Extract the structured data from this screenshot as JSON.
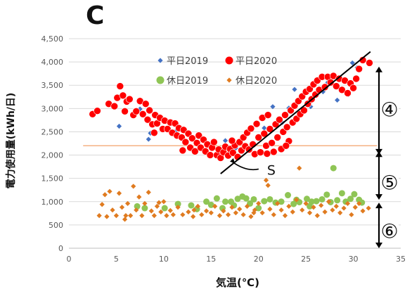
{
  "panel_label": "C",
  "chart_data": {
    "type": "scatter",
    "title": "",
    "xlabel": "気温(℃)",
    "ylabel": "電力使用量(kWh/日)",
    "xlim": [
      0,
      35
    ],
    "ylim": [
      0,
      4500
    ],
    "xticks": [
      "0",
      "5",
      "10",
      "15",
      "20",
      "25",
      "30",
      "35"
    ],
    "yticks": [
      "0",
      "500",
      "1,000",
      "1,500",
      "2,000",
      "2,500",
      "3,000",
      "3,500",
      "4,000",
      "4,500"
    ],
    "grid": "horizontal",
    "legend_position": "top",
    "colors": {
      "weekday2019": "#4472c4",
      "weekday2020": "#ff0000",
      "holiday2019": "#8fc555",
      "holiday2020": "#e07b20",
      "regression_line": "#000000",
      "baseline": "#f4b183",
      "arrow": "#000000"
    },
    "series": [
      {
        "name": "平日2019",
        "marker": "diamond",
        "points": [
          [
            5.3,
            2620
          ],
          [
            7.5,
            2990
          ],
          [
            8.6,
            2470
          ],
          [
            8.4,
            2340
          ],
          [
            11.2,
            2500
          ],
          [
            13.0,
            2110
          ],
          [
            16.5,
            2310
          ],
          [
            17.6,
            2150
          ],
          [
            19.5,
            2210
          ],
          [
            20.6,
            2580
          ],
          [
            21.5,
            3040
          ],
          [
            22.5,
            2700
          ],
          [
            23.8,
            3410
          ],
          [
            24.5,
            2880
          ],
          [
            25.5,
            3040
          ],
          [
            26.8,
            3360
          ],
          [
            27.3,
            3560
          ],
          [
            28.3,
            3180
          ],
          [
            29.5,
            3300
          ],
          [
            29.9,
            3980
          ],
          [
            30.4,
            3880
          ],
          [
            25.9,
            3290
          ],
          [
            26.3,
            3620
          ],
          [
            23.2,
            3010
          ]
        ]
      },
      {
        "name": "平日2020",
        "marker": "circle",
        "points": [
          [
            2.5,
            2880
          ],
          [
            3.0,
            2950
          ],
          [
            4.2,
            3100
          ],
          [
            4.8,
            3050
          ],
          [
            5.1,
            3230
          ],
          [
            5.4,
            3480
          ],
          [
            5.7,
            3280
          ],
          [
            5.9,
            2940
          ],
          [
            6.1,
            3150
          ],
          [
            6.4,
            3200
          ],
          [
            6.8,
            2860
          ],
          [
            7.1,
            2940
          ],
          [
            7.5,
            3160
          ],
          [
            7.8,
            2880
          ],
          [
            8.1,
            3100
          ],
          [
            8.3,
            2760
          ],
          [
            8.5,
            2960
          ],
          [
            8.8,
            2660
          ],
          [
            9.1,
            2860
          ],
          [
            9.3,
            2680
          ],
          [
            9.6,
            2800
          ],
          [
            9.9,
            2560
          ],
          [
            10.1,
            2740
          ],
          [
            10.4,
            2560
          ],
          [
            10.7,
            2700
          ],
          [
            10.9,
            2480
          ],
          [
            11.2,
            2680
          ],
          [
            11.4,
            2420
          ],
          [
            11.6,
            2580
          ],
          [
            11.9,
            2380
          ],
          [
            12.1,
            2540
          ],
          [
            12.3,
            2280
          ],
          [
            12.6,
            2460
          ],
          [
            12.8,
            2160
          ],
          [
            13.0,
            2360
          ],
          [
            13.3,
            2080
          ],
          [
            13.5,
            2260
          ],
          [
            13.7,
            2420
          ],
          [
            13.9,
            2160
          ],
          [
            14.2,
            2330
          ],
          [
            14.4,
            2080
          ],
          [
            14.6,
            2230
          ],
          [
            14.9,
            2000
          ],
          [
            15.1,
            2160
          ],
          [
            15.3,
            2280
          ],
          [
            15.6,
            2000
          ],
          [
            15.8,
            2120
          ],
          [
            16.0,
            1940
          ],
          [
            16.3,
            2060
          ],
          [
            16.5,
            2180
          ],
          [
            16.8,
            1990
          ],
          [
            17.0,
            2130
          ],
          [
            17.3,
            2050
          ],
          [
            17.5,
            2210
          ],
          [
            17.8,
            1960
          ],
          [
            18.0,
            2280
          ],
          [
            18.2,
            2100
          ],
          [
            18.4,
            2380
          ],
          [
            18.6,
            2190
          ],
          [
            18.8,
            2480
          ],
          [
            19.0,
            2120
          ],
          [
            19.2,
            2570
          ],
          [
            19.4,
            2230
          ],
          [
            19.6,
            2020
          ],
          [
            19.8,
            2670
          ],
          [
            20.0,
            2380
          ],
          [
            20.2,
            2060
          ],
          [
            20.4,
            2800
          ],
          [
            20.6,
            2460
          ],
          [
            20.8,
            2200
          ],
          [
            21.0,
            2860
          ],
          [
            21.2,
            2560
          ],
          [
            21.4,
            2260
          ],
          [
            21.6,
            2070
          ],
          [
            21.8,
            2660
          ],
          [
            22.0,
            2380
          ],
          [
            22.2,
            2760
          ],
          [
            22.4,
            2130
          ],
          [
            22.6,
            2500
          ],
          [
            22.8,
            2860
          ],
          [
            23.0,
            2600
          ],
          [
            23.2,
            2300
          ],
          [
            23.4,
            2960
          ],
          [
            23.6,
            2700
          ],
          [
            23.8,
            3060
          ],
          [
            24.0,
            2780
          ],
          [
            24.2,
            3160
          ],
          [
            24.4,
            2880
          ],
          [
            24.6,
            3260
          ],
          [
            24.8,
            2960
          ],
          [
            25.0,
            3360
          ],
          [
            25.2,
            3100
          ],
          [
            25.4,
            3420
          ],
          [
            25.6,
            3200
          ],
          [
            25.8,
            3520
          ],
          [
            26.0,
            3300
          ],
          [
            26.2,
            3600
          ],
          [
            26.4,
            3400
          ],
          [
            26.7,
            3680
          ],
          [
            27.0,
            3460
          ],
          [
            27.3,
            3680
          ],
          [
            27.6,
            3560
          ],
          [
            27.9,
            3700
          ],
          [
            28.2,
            3480
          ],
          [
            28.5,
            3640
          ],
          [
            28.8,
            3400
          ],
          [
            29.1,
            3600
          ],
          [
            29.4,
            3330
          ],
          [
            29.7,
            3540
          ],
          [
            30.0,
            3440
          ],
          [
            30.3,
            3640
          ],
          [
            30.6,
            3850
          ],
          [
            31.0,
            4040
          ],
          [
            31.7,
            3980
          ],
          [
            17.2,
            2310
          ],
          [
            20.9,
            2030
          ],
          [
            22.9,
            2200
          ],
          [
            12.0,
            2100
          ],
          [
            9.0,
            2480
          ]
        ]
      },
      {
        "name": "休日2019",
        "marker": "circle",
        "points": [
          [
            7.2,
            900
          ],
          [
            8.0,
            860
          ],
          [
            11.5,
            950
          ],
          [
            13.5,
            840
          ],
          [
            14.5,
            1000
          ],
          [
            15.0,
            930
          ],
          [
            15.6,
            1070
          ],
          [
            16.2,
            860
          ],
          [
            16.5,
            1000
          ],
          [
            17.1,
            1000
          ],
          [
            17.4,
            920
          ],
          [
            17.8,
            1060
          ],
          [
            18.3,
            1110
          ],
          [
            18.7,
            1070
          ],
          [
            19.1,
            960
          ],
          [
            19.5,
            1050
          ],
          [
            20.0,
            860
          ],
          [
            20.6,
            1010
          ],
          [
            21.2,
            1050
          ],
          [
            21.8,
            980
          ],
          [
            22.4,
            1000
          ],
          [
            23.1,
            1140
          ],
          [
            23.7,
            950
          ],
          [
            24.3,
            990
          ],
          [
            25.1,
            1060
          ],
          [
            25.6,
            1000
          ],
          [
            26.1,
            1010
          ],
          [
            26.7,
            1050
          ],
          [
            27.2,
            1150
          ],
          [
            27.6,
            990
          ],
          [
            27.9,
            1720
          ],
          [
            28.3,
            1030
          ],
          [
            28.8,
            1180
          ],
          [
            29.2,
            1000
          ],
          [
            29.7,
            1060
          ],
          [
            30.1,
            1160
          ],
          [
            30.6,
            1040
          ],
          [
            30.9,
            980
          ],
          [
            25.4,
            900
          ],
          [
            24.0,
            1040
          ],
          [
            12.9,
            920
          ],
          [
            10.1,
            860
          ]
        ]
      },
      {
        "name": "休日2020",
        "marker": "diamond",
        "points": [
          [
            3.2,
            700
          ],
          [
            3.5,
            940
          ],
          [
            3.8,
            1150
          ],
          [
            4.0,
            680
          ],
          [
            4.3,
            1220
          ],
          [
            4.6,
            820
          ],
          [
            5.0,
            700
          ],
          [
            5.3,
            1180
          ],
          [
            5.6,
            880
          ],
          [
            5.9,
            620
          ],
          [
            6.2,
            960
          ],
          [
            6.5,
            700
          ],
          [
            6.8,
            1330
          ],
          [
            7.1,
            820
          ],
          [
            7.4,
            1100
          ],
          [
            7.7,
            700
          ],
          [
            8.0,
            960
          ],
          [
            8.4,
            1200
          ],
          [
            8.7,
            800
          ],
          [
            9.0,
            700
          ],
          [
            9.3,
            900
          ],
          [
            9.7,
            780
          ],
          [
            10.0,
            1000
          ],
          [
            10.3,
            700
          ],
          [
            10.7,
            810
          ],
          [
            11.0,
            720
          ],
          [
            11.5,
            880
          ],
          [
            12.0,
            720
          ],
          [
            12.6,
            780
          ],
          [
            13.1,
            680
          ],
          [
            13.6,
            900
          ],
          [
            14.0,
            720
          ],
          [
            14.5,
            800
          ],
          [
            15.0,
            760
          ],
          [
            15.4,
            900
          ],
          [
            15.9,
            700
          ],
          [
            16.3,
            800
          ],
          [
            16.8,
            720
          ],
          [
            17.2,
            880
          ],
          [
            17.6,
            760
          ],
          [
            18.0,
            840
          ],
          [
            18.4,
            720
          ],
          [
            18.8,
            900
          ],
          [
            19.2,
            680
          ],
          [
            19.6,
            820
          ],
          [
            20.0,
            960
          ],
          [
            20.4,
            760
          ],
          [
            20.8,
            1460
          ],
          [
            21.2,
            840
          ],
          [
            21.6,
            720
          ],
          [
            22.0,
            960
          ],
          [
            22.4,
            820
          ],
          [
            22.8,
            700
          ],
          [
            23.2,
            900
          ],
          [
            23.6,
            780
          ],
          [
            24.0,
            1040
          ],
          [
            24.3,
            1720
          ],
          [
            24.6,
            820
          ],
          [
            25.0,
            960
          ],
          [
            25.4,
            760
          ],
          [
            25.8,
            880
          ],
          [
            26.2,
            700
          ],
          [
            26.6,
            920
          ],
          [
            27.0,
            780
          ],
          [
            27.4,
            1000
          ],
          [
            27.8,
            820
          ],
          [
            28.2,
            900
          ],
          [
            28.6,
            760
          ],
          [
            29.0,
            860
          ],
          [
            29.4,
            960
          ],
          [
            29.8,
            720
          ],
          [
            30.2,
            880
          ],
          [
            30.6,
            960
          ],
          [
            31.0,
            800
          ],
          [
            31.6,
            860
          ],
          [
            6.0,
            700
          ],
          [
            9.5,
            980
          ],
          [
            21.0,
            1350
          ],
          [
            19.5,
            760
          ],
          [
            13.2,
            820
          ]
        ]
      }
    ],
    "regression_line": {
      "x": [
        16.0,
        31.8
      ],
      "y": [
        1600,
        4220
      ]
    },
    "baseline": {
      "y": 2200,
      "x": [
        1.5,
        32.5
      ]
    },
    "annotations": [
      {
        "text": "S",
        "x": 20.9,
        "y": 1670
      },
      {
        "text": "④",
        "x": 34.0,
        "y": 2980
      },
      {
        "text": "⑤",
        "x": 34.0,
        "y": 1410
      },
      {
        "text": "⑥",
        "x": 34.0,
        "y": 370
      }
    ],
    "brackets": [
      {
        "label": "④",
        "y_from": 2010,
        "y_to": 3900
      },
      {
        "label": "⑤",
        "y_from": 1040,
        "y_to": 2080
      },
      {
        "label": "⑥",
        "y_from": 0,
        "y_to": 980
      }
    ]
  }
}
